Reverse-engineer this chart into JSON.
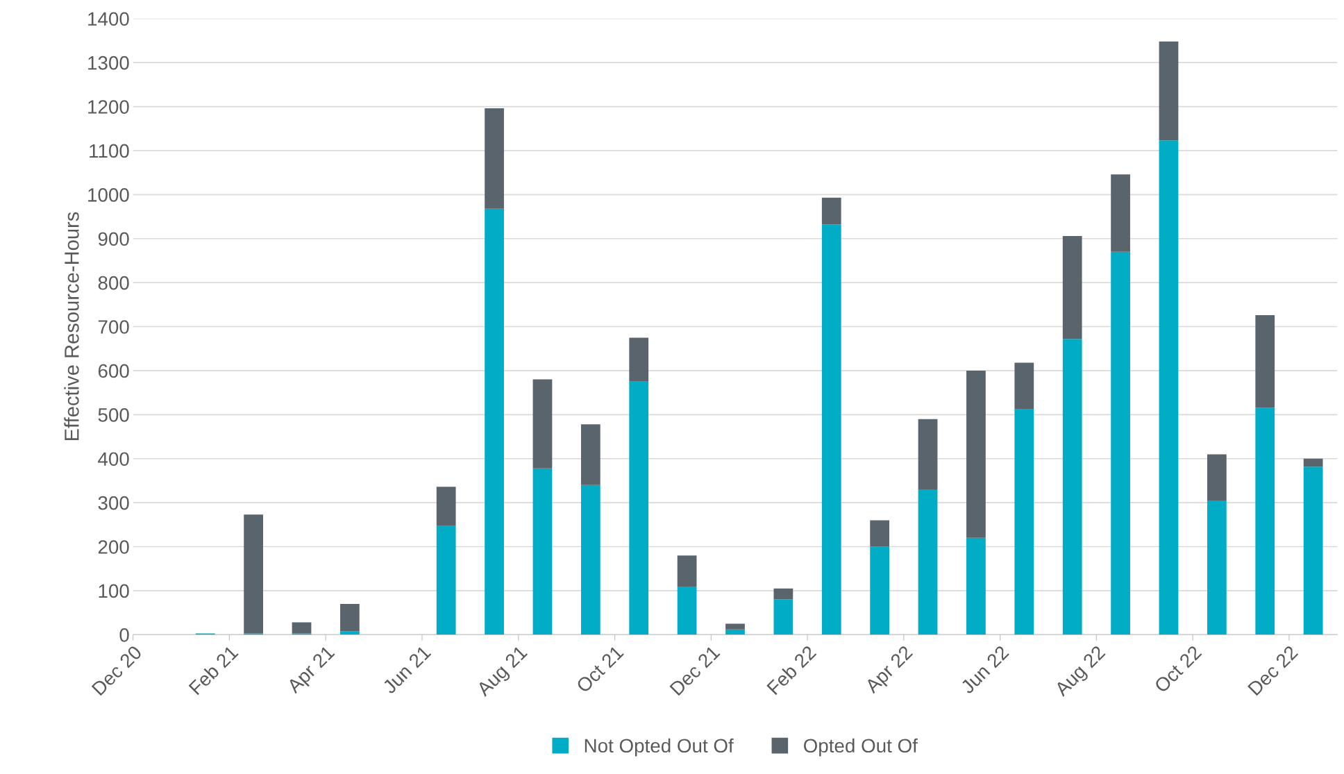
{
  "chart_data": {
    "type": "bar",
    "stacked": true,
    "ylabel": "Effective Resource-Hours",
    "categories": [
      "Dec 20",
      null,
      "Feb 21",
      null,
      "Apr 21",
      null,
      "Jun 21",
      null,
      "Aug 21",
      null,
      "Oct 21",
      null,
      "Dec 21",
      null,
      "Feb 22",
      null,
      "Apr 22",
      null,
      "Jun 22",
      null,
      "Aug 22",
      null,
      "Oct 22",
      null,
      "Dec 22"
    ],
    "series": [
      {
        "name": "Not Opted Out Of",
        "color": "#00acc6",
        "values": [
          0,
          3,
          3,
          3,
          8,
          0,
          247,
          968,
          378,
          340,
          575,
          108,
          12,
          80,
          932,
          200,
          330,
          220,
          512,
          672,
          870,
          1123,
          305,
          516,
          382
        ]
      },
      {
        "name": "Opted Out Of",
        "color": "#5a646d",
        "values": [
          0,
          null,
          270,
          25,
          62,
          0,
          89,
          228,
          202,
          138,
          100,
          72,
          13,
          25,
          61,
          60,
          160,
          380,
          106,
          234,
          176,
          225,
          105,
          210,
          18
        ]
      }
    ],
    "ylim": [
      0,
      1400
    ],
    "yticks": [
      0,
      100,
      200,
      300,
      400,
      500,
      600,
      700,
      800,
      900,
      1000,
      1100,
      1200,
      1300,
      1400
    ],
    "grid": "y",
    "legend": "bottom"
  }
}
